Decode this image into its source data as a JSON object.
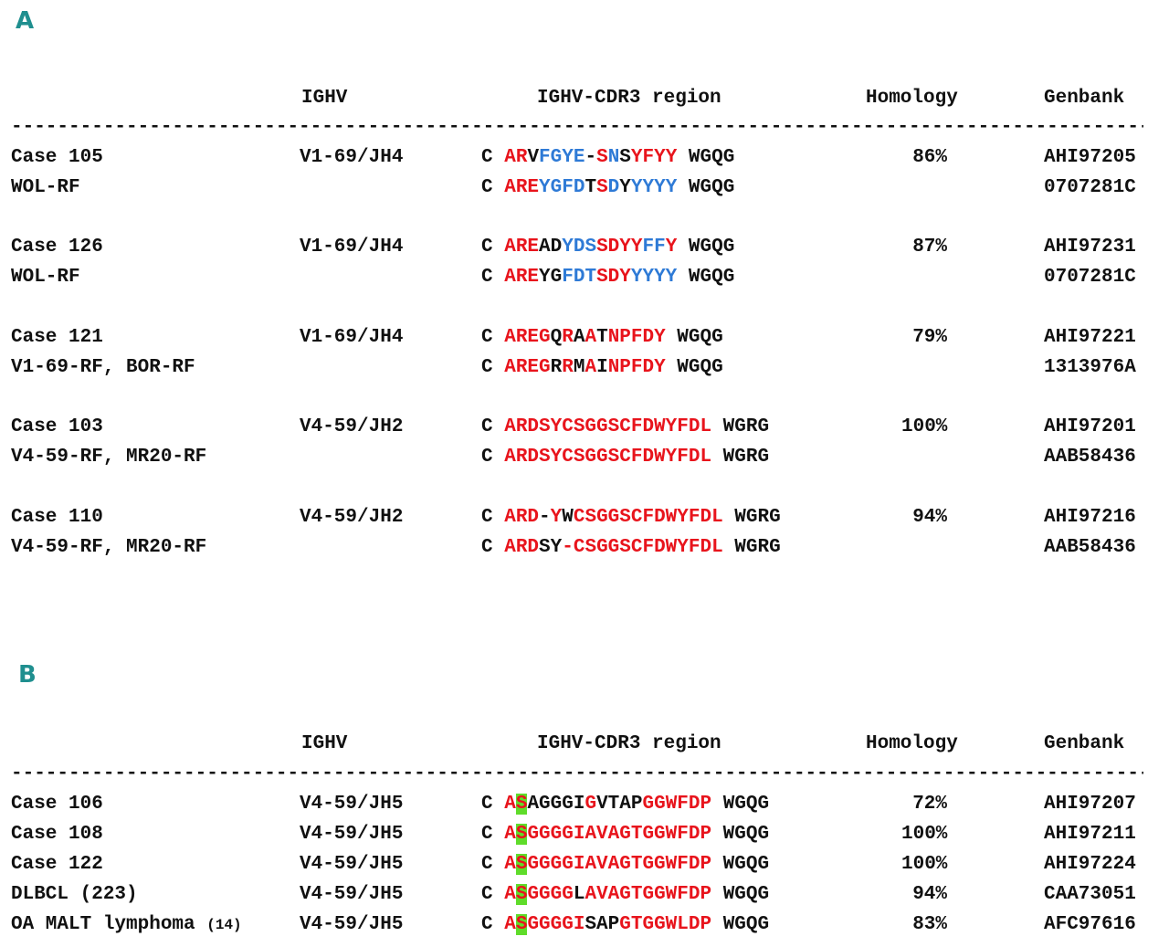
{
  "panels": [
    {
      "label": "A",
      "headers": {
        "ighv": "IGHV",
        "cdr3": "IGHV-CDR3 region",
        "homology": "Homology",
        "genbank": "Genbank"
      },
      "divider": "--------------------------------------------------------------------------------------------------------",
      "rows": [
        {
          "name": "Case 105",
          "ighv": "V1-69/JH4",
          "seq": [
            [
              "C ",
              "k"
            ],
            [
              "AR",
              "r"
            ],
            [
              "V",
              "k"
            ],
            [
              "FGYE",
              "b"
            ],
            [
              "-",
              "k"
            ],
            [
              "S",
              "r"
            ],
            [
              "N",
              "b"
            ],
            [
              "S",
              "k"
            ],
            [
              "YFYY",
              "r"
            ],
            [
              " WGQG",
              "k"
            ]
          ],
          "homology": "86%",
          "genbank": "AHI97205"
        },
        {
          "name": "WOL-RF",
          "ighv": "",
          "seq": [
            [
              "C ",
              "k"
            ],
            [
              "ARE",
              "r"
            ],
            [
              "YGFD",
              "b"
            ],
            [
              "T",
              "k"
            ],
            [
              "S",
              "r"
            ],
            [
              "D",
              "b"
            ],
            [
              "Y",
              "k"
            ],
            [
              "YYYY",
              "b"
            ],
            [
              " WGQG",
              "k"
            ]
          ],
          "homology": "",
          "genbank": "0707281C"
        },
        {
          "name": "Case 126",
          "ighv": "V1-69/JH4",
          "seq": [
            [
              "C ",
              "k"
            ],
            [
              "ARE",
              "r"
            ],
            [
              "AD",
              "k"
            ],
            [
              "YDS",
              "b"
            ],
            [
              "SDYY",
              "r"
            ],
            [
              "FF",
              "b"
            ],
            [
              "Y",
              "r"
            ],
            [
              " WGQG",
              "k"
            ]
          ],
          "homology": "87%",
          "genbank": "AHI97231"
        },
        {
          "name": "WOL-RF",
          "ighv": "",
          "seq": [
            [
              "C ",
              "k"
            ],
            [
              "ARE",
              "r"
            ],
            [
              "YG",
              "k"
            ],
            [
              "FDT",
              "b"
            ],
            [
              "SDY",
              "r"
            ],
            [
              "YYYY",
              "b"
            ],
            [
              " WGQG",
              "k"
            ]
          ],
          "homology": "",
          "genbank": "0707281C"
        },
        {
          "name": "Case 121",
          "ighv": "V1-69/JH4",
          "seq": [
            [
              "C ",
              "k"
            ],
            [
              "AREG",
              "r"
            ],
            [
              "Q",
              "k"
            ],
            [
              "R",
              "r"
            ],
            [
              "A",
              "k"
            ],
            [
              "A",
              "r"
            ],
            [
              "T",
              "k"
            ],
            [
              "NPFDY",
              "r"
            ],
            [
              " WGQG",
              "k"
            ]
          ],
          "homology": "79%",
          "genbank": "AHI97221"
        },
        {
          "name": "V1-69-RF, BOR-RF",
          "ighv": "",
          "seq": [
            [
              "C ",
              "k"
            ],
            [
              "AREG",
              "r"
            ],
            [
              "R",
              "k"
            ],
            [
              "R",
              "r"
            ],
            [
              "M",
              "k"
            ],
            [
              "A",
              "r"
            ],
            [
              "I",
              "k"
            ],
            [
              "NPFDY",
              "r"
            ],
            [
              " WGQG",
              "k"
            ]
          ],
          "homology": "",
          "genbank": "1313976A"
        },
        {
          "name": "Case 103",
          "ighv": "V4-59/JH2",
          "seq": [
            [
              "C ",
              "k"
            ],
            [
              "ARDSYCSGGSCFDWYFDL",
              "r"
            ],
            [
              " WGRG",
              "k"
            ]
          ],
          "homology": "100%",
          "genbank": "AHI97201"
        },
        {
          "name": "V4-59-RF, MR20-RF",
          "ighv": "",
          "seq": [
            [
              "C ",
              "k"
            ],
            [
              "ARDSYCSGGSCFDWYFDL",
              "r"
            ],
            [
              " WGRG",
              "k"
            ]
          ],
          "homology": "",
          "genbank": "AAB58436"
        },
        {
          "name": "Case 110",
          "ighv": "V4-59/JH2",
          "seq": [
            [
              "C ",
              "k"
            ],
            [
              "ARD",
              "r"
            ],
            [
              "-",
              "k"
            ],
            [
              "Y",
              "r"
            ],
            [
              "W",
              "k"
            ],
            [
              "CSGGSCFDWYFDL",
              "r"
            ],
            [
              " WGRG",
              "k"
            ]
          ],
          "homology": "94%",
          "genbank": "AHI97216"
        },
        {
          "name": "V4-59-RF, MR20-RF",
          "ighv": "",
          "seq": [
            [
              "C ",
              "k"
            ],
            [
              "ARD",
              "r"
            ],
            [
              "SY",
              "k"
            ],
            [
              "-",
              "r"
            ],
            [
              "CSGGSCFDWYFDL",
              "r"
            ],
            [
              " WGRG",
              "k"
            ]
          ],
          "homology": "",
          "genbank": "AAB58436"
        }
      ]
    },
    {
      "label": "B",
      "headers": {
        "ighv": "IGHV",
        "cdr3": "IGHV-CDR3 region",
        "homology": "Homology",
        "genbank": "Genbank"
      },
      "divider": "--------------------------------------------------------------------------------------------------------",
      "rows": [
        {
          "name": "Case 106",
          "ighv": "V4-59/JH5",
          "seq": [
            [
              "C ",
              "k"
            ],
            [
              "A",
              "r"
            ],
            [
              "S",
              "rg"
            ],
            [
              "AGGGI",
              "k"
            ],
            [
              "G",
              "r"
            ],
            [
              "VTAP",
              "k"
            ],
            [
              "GGWFDP",
              "r"
            ],
            [
              " WGQG",
              "k"
            ]
          ],
          "homology": "72%",
          "genbank": "AHI97207"
        },
        {
          "name": "Case 108",
          "ighv": "V4-59/JH5",
          "seq": [
            [
              "C ",
              "k"
            ],
            [
              "A",
              "r"
            ],
            [
              "S",
              "rg"
            ],
            [
              "GGGGIAVAGTGGWFDP",
              "r"
            ],
            [
              " WGQG",
              "k"
            ]
          ],
          "homology": "100%",
          "genbank": "AHI97211"
        },
        {
          "name": "Case 122",
          "ighv": "V4-59/JH5",
          "seq": [
            [
              "C ",
              "k"
            ],
            [
              "A",
              "r"
            ],
            [
              "S",
              "rg"
            ],
            [
              "GGGGIAVAGTGGWFDP",
              "r"
            ],
            [
              " WGQG",
              "k"
            ]
          ],
          "homology": "100%",
          "genbank": "AHI97224"
        },
        {
          "name": "DLBCL",
          "name_suffix": "(223)",
          "ighv": "V4-59/JH5",
          "seq": [
            [
              "C ",
              "k"
            ],
            [
              "A",
              "r"
            ],
            [
              "S",
              "rg"
            ],
            [
              "GGGG",
              "r"
            ],
            [
              "L",
              "k"
            ],
            [
              "AVAGTGGWFDP",
              "r"
            ],
            [
              " WGQG",
              "k"
            ]
          ],
          "homology": "94%",
          "genbank": "CAA73051"
        },
        {
          "name": "OA MALT lymphoma",
          "name_suffix_small": "(14)",
          "ighv": "V4-59/JH5",
          "seq": [
            [
              "C ",
              "k"
            ],
            [
              "A",
              "r"
            ],
            [
              "S",
              "rg"
            ],
            [
              "GGGGI",
              "r"
            ],
            [
              "SAP",
              "k"
            ],
            [
              "GTGGWLDP",
              "r"
            ],
            [
              " WGQG",
              "k"
            ]
          ],
          "homology": "83%",
          "genbank": "AFC97616"
        }
      ]
    }
  ]
}
